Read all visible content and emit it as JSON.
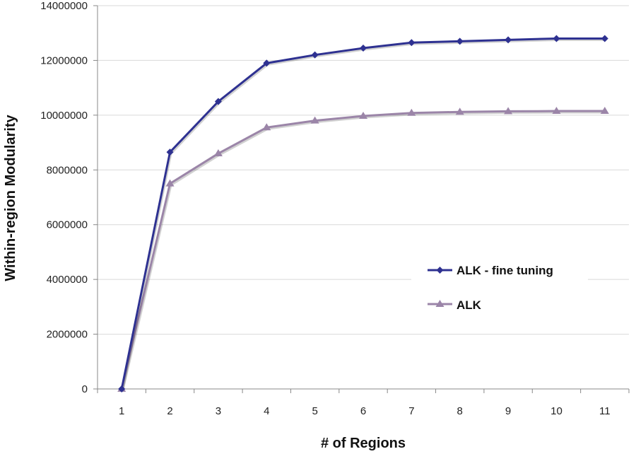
{
  "chart_data": {
    "type": "line",
    "title": "",
    "xlabel": "# of Regions",
    "ylabel": "Within-region Modularity",
    "x": [
      1,
      2,
      3,
      4,
      5,
      6,
      7,
      8,
      9,
      10,
      11
    ],
    "x_tick_labels": [
      "1",
      "2",
      "3",
      "4",
      "5",
      "6",
      "7",
      "8",
      "9",
      "10",
      "11"
    ],
    "y_tick_labels": [
      "0",
      "2000000",
      "4000000",
      "6000000",
      "8000000",
      "10000000",
      "12000000",
      "14000000"
    ],
    "ylim": [
      0,
      14000000
    ],
    "grid": true,
    "legend_position": "right",
    "series": [
      {
        "name": "ALK - fine tuning",
        "marker": "diamond",
        "color": "#2e3191",
        "values": [
          0,
          8650000,
          10500000,
          11900000,
          12200000,
          12450000,
          12650000,
          12700000,
          12750000,
          12800000,
          12800000
        ]
      },
      {
        "name": "ALK",
        "marker": "triangle",
        "color": "#9b85a8",
        "values": [
          0,
          7500000,
          8600000,
          9550000,
          9800000,
          9970000,
          10080000,
          10120000,
          10140000,
          10150000,
          10150000
        ]
      }
    ]
  }
}
